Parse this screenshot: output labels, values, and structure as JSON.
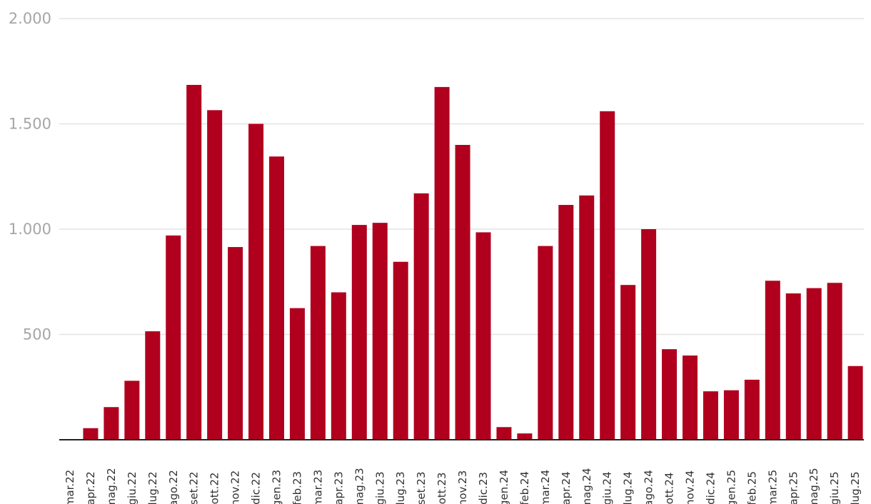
{
  "chart_data": {
    "type": "bar",
    "title": "",
    "xlabel": "",
    "ylabel": "",
    "ylim": [
      0,
      2000
    ],
    "yticks": [
      500,
      1000,
      1500,
      2000
    ],
    "ytick_labels": [
      "500",
      "1.000",
      "1.500",
      "2.000"
    ],
    "grid": true,
    "bar_color": "#b0001e",
    "categories": [
      "mar.22",
      "apr.22",
      "mag.22",
      "giu.22",
      "lug.22",
      "ago.22",
      "set.22",
      "ott.22",
      "nov.22",
      "dic.22",
      "gen.23",
      "feb.23",
      "mar.23",
      "apr.23",
      "mag.23",
      "giu.23",
      "lug.23",
      "set.23",
      "ott.23",
      "nov.23",
      "dic.23",
      "gen.24",
      "feb.24",
      "mar.24",
      "apr.24",
      "mag.24",
      "giu.24",
      "lug.24",
      "ago.24",
      "ott.24",
      "nov.24",
      "dic.24",
      "gen.25",
      "feb.25",
      "mar.25",
      "apr.25",
      "mag.25",
      "giu.25",
      "lug.25"
    ],
    "values": [
      0,
      55,
      155,
      280,
      515,
      970,
      1685,
      1565,
      915,
      1500,
      1345,
      625,
      920,
      700,
      1020,
      1030,
      845,
      1170,
      1675,
      1400,
      985,
      60,
      30,
      920,
      1115,
      1160,
      1560,
      735,
      1000,
      430,
      400,
      230,
      235,
      285,
      755,
      695,
      720,
      745,
      350
    ]
  }
}
